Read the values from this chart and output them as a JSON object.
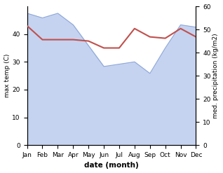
{
  "months": [
    "Jan",
    "Feb",
    "Mar",
    "Apr",
    "May",
    "Jun",
    "Jul",
    "Aug",
    "Sep",
    "Oct",
    "Nov",
    "Dec"
  ],
  "month_indices": [
    0,
    1,
    2,
    3,
    4,
    5,
    6,
    7,
    8,
    9,
    10,
    11
  ],
  "temperature": [
    43,
    38,
    38,
    38,
    37.5,
    35,
    35,
    42,
    39,
    38.5,
    42,
    39
  ],
  "precipitation": [
    57,
    55,
    57,
    52,
    43,
    34,
    35,
    36,
    31,
    42,
    52,
    51
  ],
  "temp_color": "#c0504d",
  "precip_fill_color": "#c5d3f0",
  "precip_line_color": "#8fa8d8",
  "temp_ylim": [
    0,
    50
  ],
  "precip_ylim": [
    0,
    60
  ],
  "temp_yticks": [
    0,
    10,
    20,
    30,
    40
  ],
  "precip_yticks": [
    0,
    10,
    20,
    30,
    40,
    50,
    60
  ],
  "ylabel_left": "max temp (C)",
  "ylabel_right": "med. precipitation (kg/m2)",
  "xlabel": "date (month)",
  "background_color": "#ffffff"
}
